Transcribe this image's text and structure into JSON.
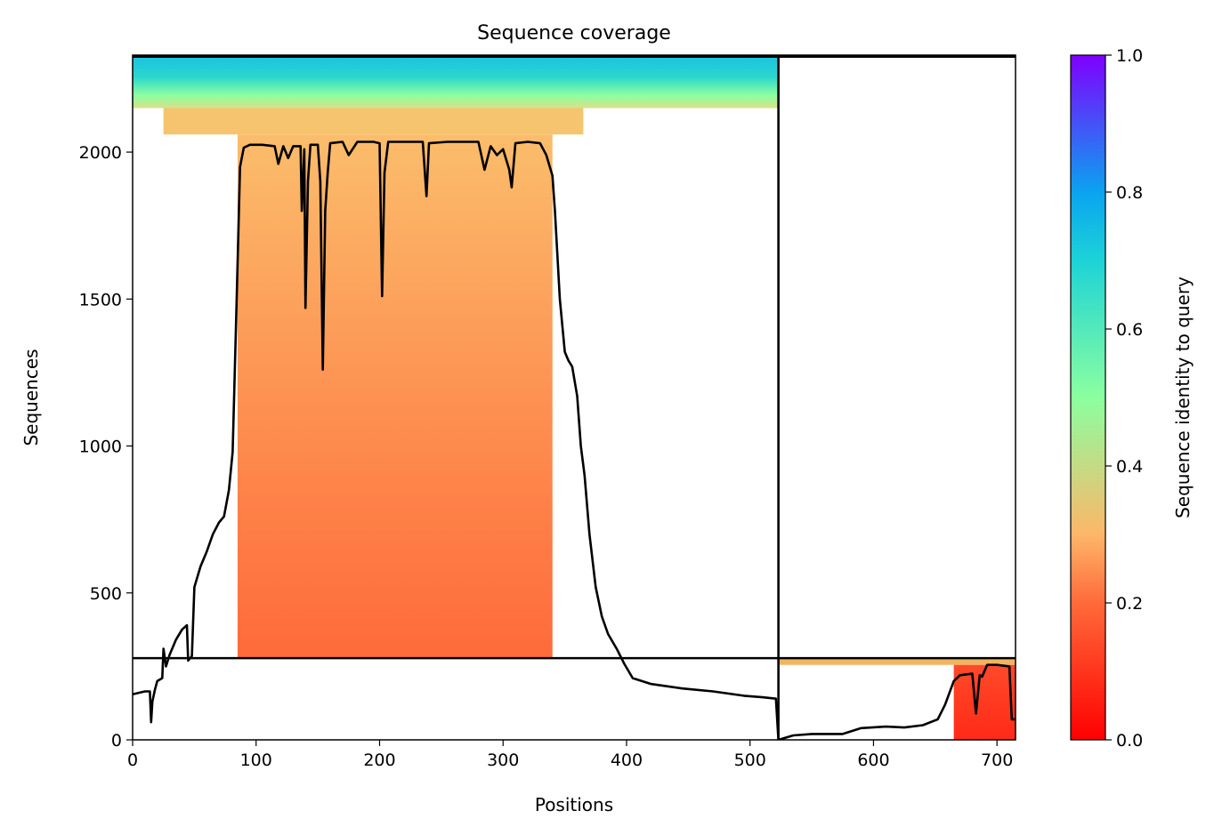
{
  "chart_data": {
    "type": "heatmap",
    "title": "Sequence coverage",
    "xlabel": "Positions",
    "ylabel": "Sequences",
    "xlim": [
      0,
      715
    ],
    "ylim": [
      0,
      2330
    ],
    "x_ticks": [
      0,
      100,
      200,
      300,
      400,
      500,
      600,
      700
    ],
    "y_ticks": [
      0,
      500,
      1000,
      1500,
      2000
    ],
    "colorbar": {
      "label": "Sequence identity to query",
      "range": [
        0.0,
        1.0
      ],
      "ticks": [
        0.0,
        0.2,
        0.4,
        0.6,
        0.8,
        1.0
      ],
      "colormap": "rainbow_r",
      "stops": [
        "#ff0000",
        "#ff6a3a",
        "#fdb769",
        "#8bffa0",
        "#00b5eb",
        "#7f00ff"
      ]
    },
    "divider_lines": {
      "vertical_x": 523,
      "horizontal_y": 278,
      "top_y": 2325
    },
    "coverage_regions": [
      {
        "x0": 0,
        "x1": 523,
        "y0": 2150,
        "y1": 2325,
        "identity_low": 0.5,
        "identity_high": 0.68
      },
      {
        "x0": 25,
        "x1": 365,
        "y0": 2060,
        "y1": 2150,
        "identity_low": 0.28,
        "identity_high": 0.32
      },
      {
        "x0": 85,
        "x1": 340,
        "y0": 278,
        "y1": 2060,
        "identity_low": 0.14,
        "identity_high": 0.27
      },
      {
        "x0": 523,
        "x1": 715,
        "y0": 255,
        "y1": 278,
        "identity_low": 0.28,
        "identity_high": 0.32
      },
      {
        "x0": 665,
        "x1": 715,
        "y0": 0,
        "y1": 255,
        "identity_low": 0.04,
        "identity_high": 0.12
      }
    ],
    "coverage_line": {
      "color": "#000000",
      "points": [
        [
          0,
          155
        ],
        [
          5,
          160
        ],
        [
          10,
          165
        ],
        [
          14,
          165
        ],
        [
          15,
          60
        ],
        [
          16,
          130
        ],
        [
          18,
          170
        ],
        [
          20,
          200
        ],
        [
          24,
          210
        ],
        [
          25,
          310
        ],
        [
          27,
          250
        ],
        [
          30,
          290
        ],
        [
          35,
          340
        ],
        [
          40,
          375
        ],
        [
          44,
          390
        ],
        [
          45,
          270
        ],
        [
          48,
          285
        ],
        [
          50,
          520
        ],
        [
          55,
          590
        ],
        [
          60,
          640
        ],
        [
          65,
          700
        ],
        [
          70,
          740
        ],
        [
          74,
          760
        ],
        [
          78,
          850
        ],
        [
          81,
          980
        ],
        [
          84,
          1450
        ],
        [
          87,
          1950
        ],
        [
          90,
          2015
        ],
        [
          95,
          2025
        ],
        [
          105,
          2025
        ],
        [
          115,
          2020
        ],
        [
          118,
          1960
        ],
        [
          122,
          2020
        ],
        [
          126,
          1980
        ],
        [
          130,
          2020
        ],
        [
          136,
          2020
        ],
        [
          137,
          1800
        ],
        [
          139,
          2010
        ],
        [
          140,
          1470
        ],
        [
          142,
          1900
        ],
        [
          144,
          2025
        ],
        [
          150,
          2025
        ],
        [
          152,
          1900
        ],
        [
          154,
          1260
        ],
        [
          156,
          1800
        ],
        [
          158,
          1930
        ],
        [
          160,
          2030
        ],
        [
          170,
          2035
        ],
        [
          175,
          1990
        ],
        [
          182,
          2035
        ],
        [
          195,
          2035
        ],
        [
          200,
          2030
        ],
        [
          202,
          1510
        ],
        [
          204,
          1930
        ],
        [
          207,
          2035
        ],
        [
          215,
          2035
        ],
        [
          225,
          2035
        ],
        [
          235,
          2035
        ],
        [
          238,
          1850
        ],
        [
          240,
          2030
        ],
        [
          255,
          2035
        ],
        [
          265,
          2035
        ],
        [
          280,
          2035
        ],
        [
          285,
          1940
        ],
        [
          290,
          2020
        ],
        [
          295,
          1990
        ],
        [
          300,
          2010
        ],
        [
          305,
          1940
        ],
        [
          307,
          1880
        ],
        [
          310,
          2030
        ],
        [
          320,
          2035
        ],
        [
          330,
          2030
        ],
        [
          335,
          1990
        ],
        [
          340,
          1920
        ],
        [
          342,
          1800
        ],
        [
          346,
          1500
        ],
        [
          350,
          1320
        ],
        [
          353,
          1290
        ],
        [
          356,
          1270
        ],
        [
          360,
          1170
        ],
        [
          363,
          1000
        ],
        [
          366,
          900
        ],
        [
          370,
          700
        ],
        [
          375,
          520
        ],
        [
          380,
          420
        ],
        [
          385,
          360
        ],
        [
          392,
          310
        ],
        [
          398,
          260
        ],
        [
          405,
          210
        ],
        [
          420,
          190
        ],
        [
          445,
          175
        ],
        [
          470,
          165
        ],
        [
          495,
          150
        ],
        [
          510,
          145
        ],
        [
          521,
          140
        ],
        [
          523,
          0
        ],
        [
          535,
          15
        ],
        [
          550,
          20
        ],
        [
          575,
          20
        ],
        [
          590,
          40
        ],
        [
          610,
          45
        ],
        [
          625,
          42
        ],
        [
          640,
          50
        ],
        [
          652,
          70
        ],
        [
          658,
          120
        ],
        [
          665,
          200
        ],
        [
          670,
          220
        ],
        [
          680,
          225
        ],
        [
          683,
          90
        ],
        [
          686,
          220
        ],
        [
          688,
          215
        ],
        [
          692,
          255
        ],
        [
          700,
          255
        ],
        [
          710,
          250
        ],
        [
          712,
          70
        ],
        [
          715,
          70
        ]
      ]
    }
  }
}
